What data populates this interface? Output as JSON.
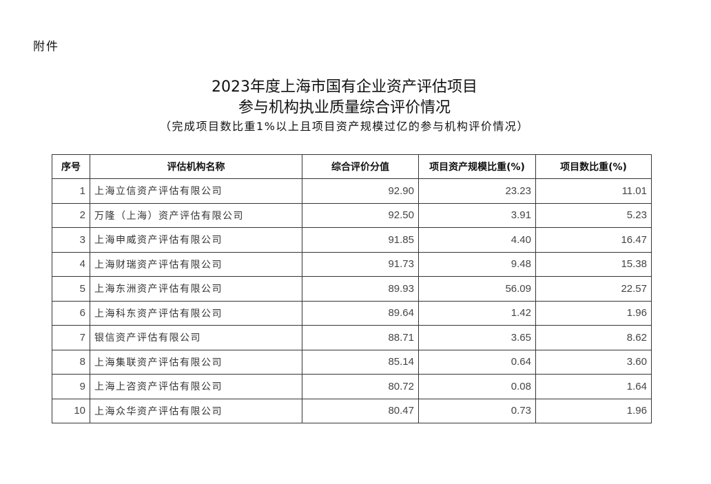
{
  "attachment_label": "附件",
  "title_line1": "2023年度上海市国有企业资产评估项目",
  "title_line2": "参与机构执业质量综合评价情况",
  "subtitle": "（完成项目数比重1%以上且项目资产规模过亿的参与机构评价情况）",
  "table": {
    "headers": [
      "序号",
      "评估机构名称",
      "综合评价分值",
      "项目资产规模比重(%)",
      "项目数比重(%)"
    ],
    "rows": [
      [
        "1",
        "上海立信资产评估有限公司",
        "92.90",
        "23.23",
        "11.01"
      ],
      [
        "2",
        "万隆（上海）资产评估有限公司",
        "92.50",
        "3.91",
        "5.23"
      ],
      [
        "3",
        "上海申威资产评估有限公司",
        "91.85",
        "4.40",
        "16.47"
      ],
      [
        "4",
        "上海财瑞资产评估有限公司",
        "91.73",
        "9.48",
        "15.38"
      ],
      [
        "5",
        "上海东洲资产评估有限公司",
        "89.93",
        "56.09",
        "22.57"
      ],
      [
        "6",
        "上海科东资产评估有限公司",
        "89.64",
        "1.42",
        "1.96"
      ],
      [
        "7",
        "银信资产评估有限公司",
        "88.71",
        "3.65",
        "8.62"
      ],
      [
        "8",
        "上海集联资产评估有限公司",
        "85.14",
        "0.64",
        "3.60"
      ],
      [
        "9",
        "上海上咨资产评估有限公司",
        "80.72",
        "0.08",
        "1.64"
      ],
      [
        "10",
        "上海众华资产评估有限公司",
        "80.47",
        "0.73",
        "1.96"
      ]
    ]
  }
}
